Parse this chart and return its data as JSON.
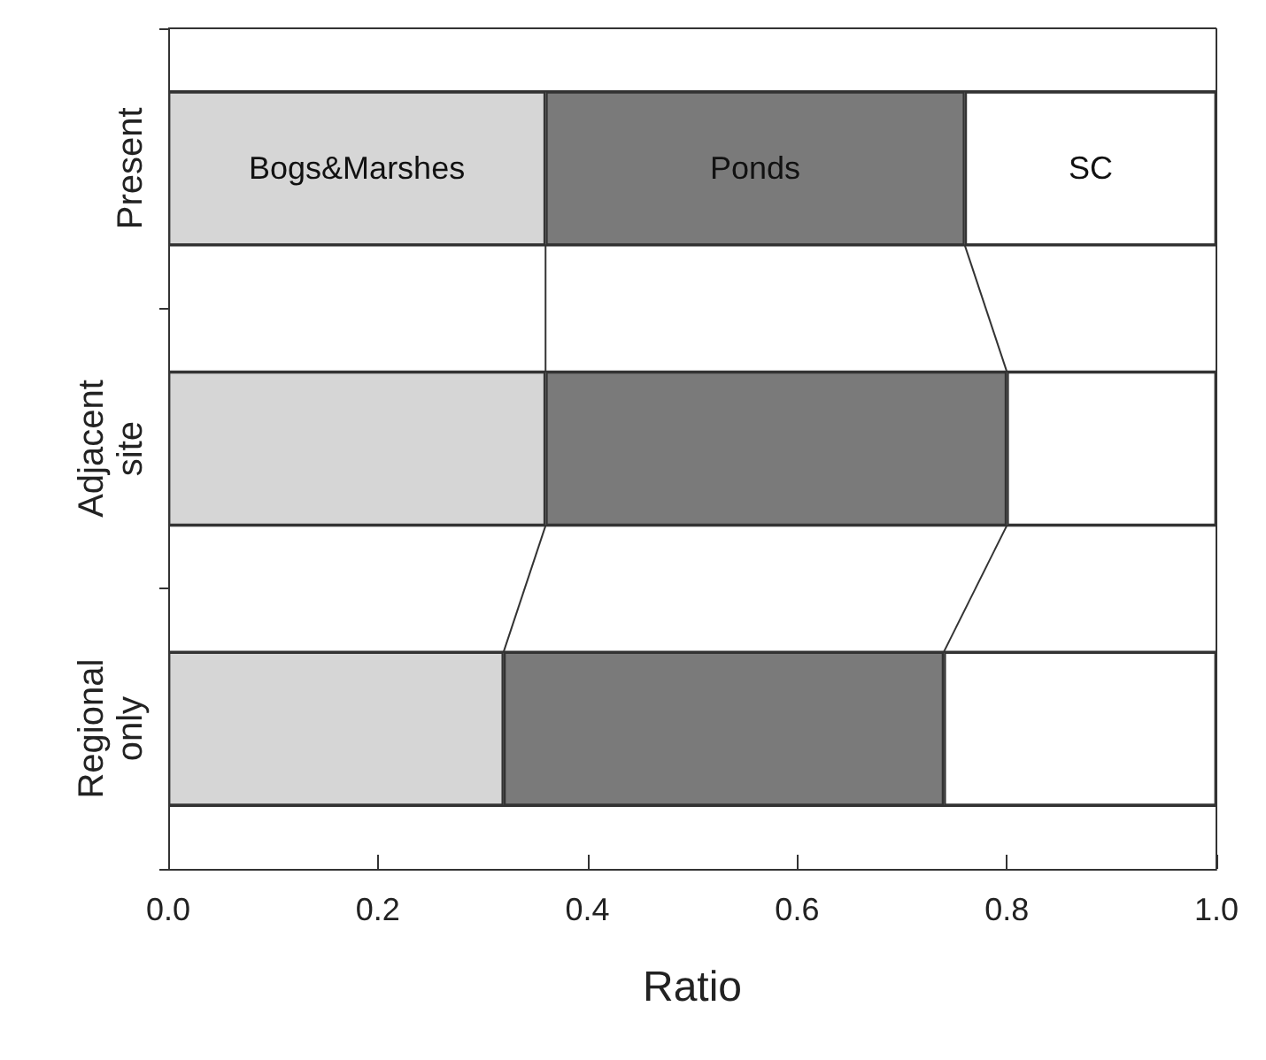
{
  "chart_data": {
    "type": "bar",
    "orientation": "horizontal",
    "stacked": true,
    "xlabel": "Ratio",
    "categories": [
      "Present",
      "Adjacent site",
      "Regional only"
    ],
    "series": [
      {
        "name": "Bogs&Marshes",
        "color": "#d6d6d6",
        "values": [
          0.36,
          0.36,
          0.32
        ]
      },
      {
        "name": "Ponds",
        "color": "#7a7a7a",
        "values": [
          0.4,
          0.44,
          0.42
        ]
      },
      {
        "name": "SC",
        "color": "#ffffff",
        "values": [
          0.24,
          0.2,
          0.26
        ]
      }
    ],
    "xlim": [
      0,
      1
    ],
    "xticks": [
      {
        "value": 0,
        "label": "0.0"
      },
      0.2,
      0.4,
      0.6,
      0.8,
      {
        "value": 1,
        "label": "1.0"
      }
    ],
    "grid": false,
    "legend": false
  }
}
